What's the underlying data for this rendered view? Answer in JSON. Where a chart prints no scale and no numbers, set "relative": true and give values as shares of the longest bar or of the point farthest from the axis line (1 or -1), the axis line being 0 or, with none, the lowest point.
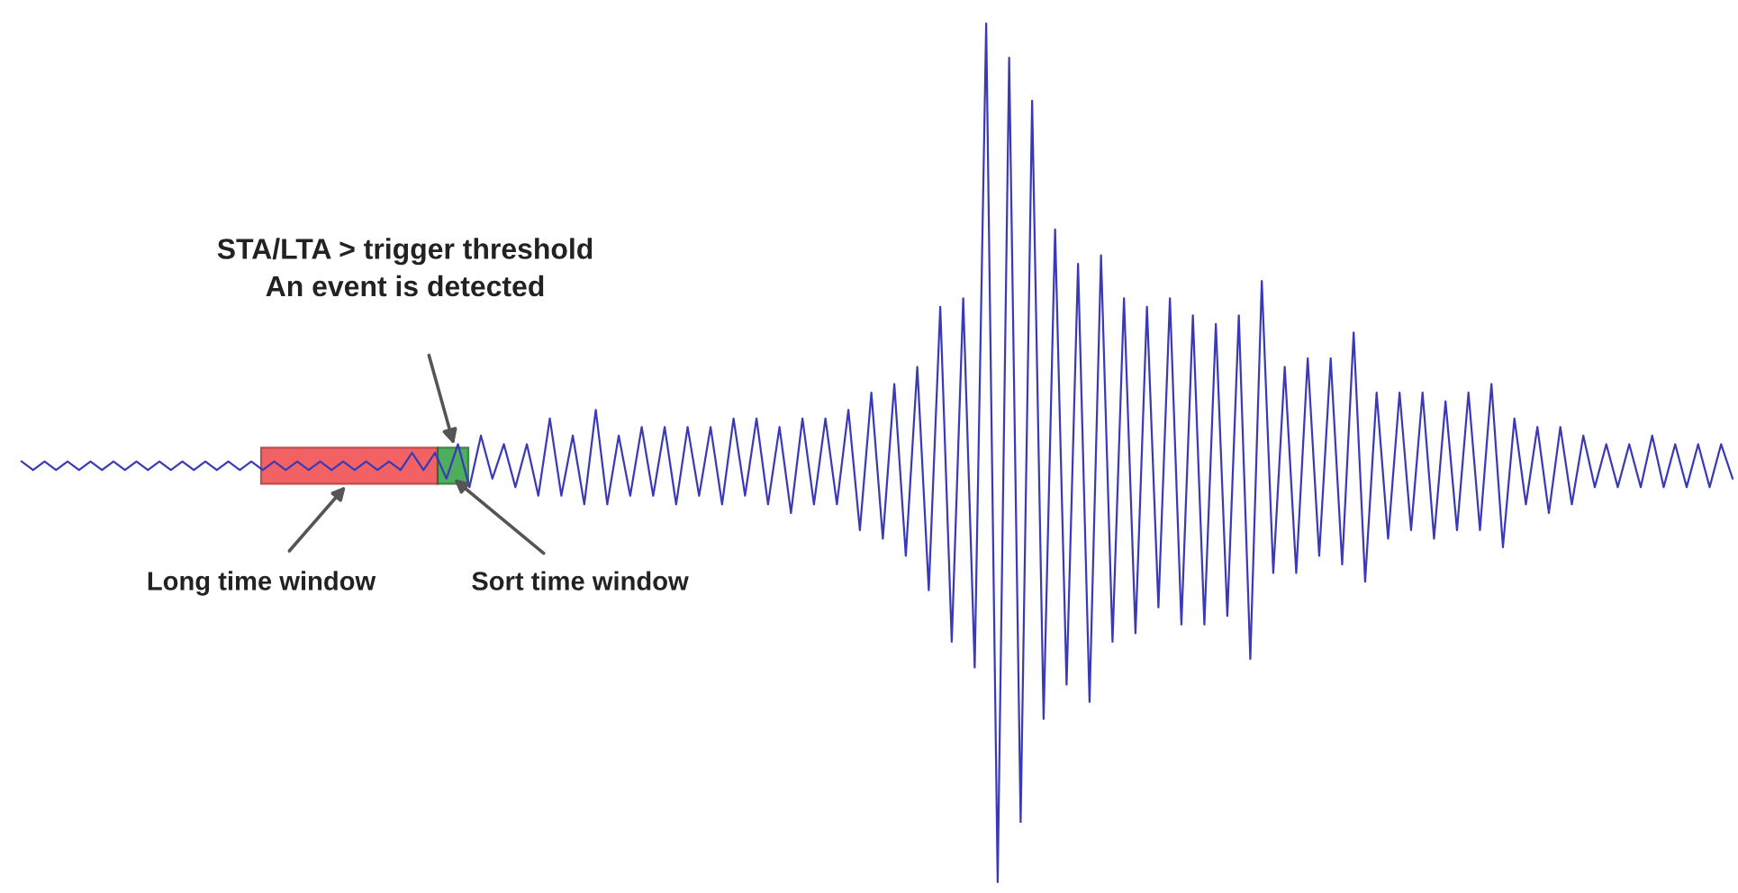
{
  "chart_data": {
    "type": "line",
    "relative": true,
    "marker": "none",
    "line_style": "solid",
    "categories": [
      null,
      null,
      null,
      null,
      null,
      null,
      null,
      null,
      null,
      null,
      null,
      null,
      null,
      null,
      null,
      null,
      null,
      null,
      null,
      null,
      null,
      null,
      null,
      null,
      null,
      null,
      null,
      null,
      null,
      null,
      null,
      null,
      null,
      null,
      null,
      null,
      null,
      null,
      null,
      null,
      null,
      null,
      null,
      null,
      null,
      null,
      null,
      null,
      null,
      null,
      null,
      null,
      null,
      null,
      null,
      null,
      null,
      null,
      null,
      null,
      null,
      null,
      null,
      null,
      null,
      null,
      null,
      null,
      null,
      null,
      null,
      null,
      null,
      null,
      null,
      null,
      null,
      null,
      null,
      null,
      null,
      null,
      null,
      null,
      null,
      null,
      null,
      null,
      null,
      null,
      null,
      null,
      null,
      null,
      null,
      null,
      null,
      null,
      null,
      null,
      null,
      null,
      null,
      null,
      null,
      null,
      null,
      null,
      null,
      null,
      null,
      null,
      null,
      null,
      null,
      null,
      null,
      null,
      null,
      null,
      null,
      null,
      null,
      null,
      null,
      null,
      null,
      null,
      null,
      null,
      null,
      null,
      null,
      null,
      null,
      null,
      null,
      null,
      null,
      null,
      null,
      null,
      null,
      null,
      null,
      null,
      null,
      null,
      null,
      null
    ],
    "series": [
      {
        "color": "#3a3ab8",
        "values": [
          0.49,
          0.48,
          0.49,
          0.48,
          0.49,
          0.48,
          0.49,
          0.48,
          0.49,
          0.48,
          0.49,
          0.48,
          0.49,
          0.48,
          0.49,
          0.48,
          0.49,
          0.48,
          0.49,
          0.48,
          0.49,
          0.48,
          0.49,
          0.48,
          0.49,
          0.48,
          0.49,
          0.48,
          0.49,
          0.48,
          0.49,
          0.48,
          0.49,
          0.48,
          0.5,
          0.48,
          0.5,
          0.47,
          0.51,
          0.46,
          0.52,
          0.47,
          0.51,
          0.46,
          0.51,
          0.45,
          0.54,
          0.45,
          0.52,
          0.44,
          0.55,
          0.44,
          0.52,
          0.45,
          0.53,
          0.45,
          0.53,
          0.44,
          0.53,
          0.45,
          0.53,
          0.44,
          0.54,
          0.45,
          0.54,
          0.44,
          0.53,
          0.43,
          0.54,
          0.44,
          0.54,
          0.44,
          0.55,
          0.41,
          0.57,
          0.4,
          0.58,
          0.38,
          0.6,
          0.34,
          0.67,
          0.28,
          0.68,
          0.25,
          1,
          0,
          0.96,
          0.07,
          0.91,
          0.19,
          0.76,
          0.23,
          0.72,
          0.21,
          0.73,
          0.28,
          0.68,
          0.29,
          0.67,
          0.32,
          0.68,
          0.3,
          0.66,
          0.3,
          0.65,
          0.31,
          0.66,
          0.26,
          0.7,
          0.36,
          0.6,
          0.36,
          0.61,
          0.38,
          0.61,
          0.37,
          0.64,
          0.35,
          0.57,
          0.4,
          0.57,
          0.41,
          0.57,
          0.4,
          0.56,
          0.41,
          0.57,
          0.41,
          0.58,
          0.39,
          0.54,
          0.44,
          0.53,
          0.43,
          0.53,
          0.44,
          0.52,
          0.46,
          0.51,
          0.46,
          0.51,
          0.46,
          0.52,
          0.46,
          0.51,
          0.46,
          0.51,
          0.46,
          0.51,
          0.47
        ]
      }
    ],
    "annotations": [
      "STA/LTA > trigger threshold\nAn event is detected",
      "Long time window",
      "Sort time window"
    ]
  }
}
